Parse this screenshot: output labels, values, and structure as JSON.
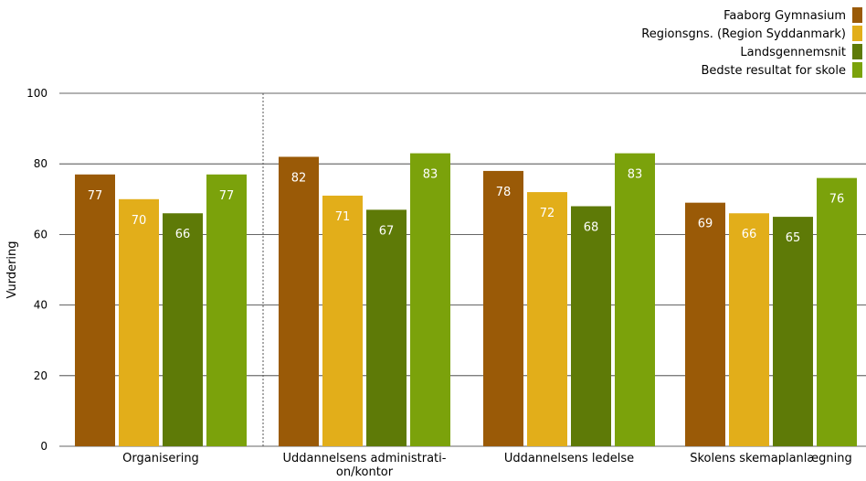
{
  "chart_data": {
    "type": "bar",
    "categories": [
      "Organisering",
      "Uddannelsens administrati-\non/kontor",
      "Uddannelsens ledelse",
      "Skolens skemaplanlægning"
    ],
    "series": [
      {
        "name": "Faaborg Gymnasium",
        "color": "#9a5a07",
        "values": [
          77,
          82,
          78,
          69
        ],
        "labels": [
          "77",
          "82",
          "78",
          "69"
        ]
      },
      {
        "name": "Regionsgns. (Region Syddanmark)",
        "color": "#e2ae1a",
        "values": [
          70,
          71,
          72,
          66
        ],
        "labels": [
          "70",
          "71",
          "72",
          "66"
        ]
      },
      {
        "name": "Landsgennemsnit",
        "color": "#5e7a07",
        "values": [
          66,
          67,
          68,
          65
        ],
        "labels": [
          "66",
          "67",
          "68",
          "65"
        ]
      },
      {
        "name": "Bedste resultat for skole",
        "color": "#7ba20b",
        "values": [
          77,
          83,
          83,
          76
        ],
        "labels": [
          "77",
          "83",
          "83",
          "76"
        ]
      }
    ],
    "ylabel": "Vurdering",
    "ylim": [
      0,
      100
    ],
    "yticks": [
      0,
      20,
      40,
      60,
      80,
      100
    ],
    "grid": true,
    "legend": "top-right"
  }
}
